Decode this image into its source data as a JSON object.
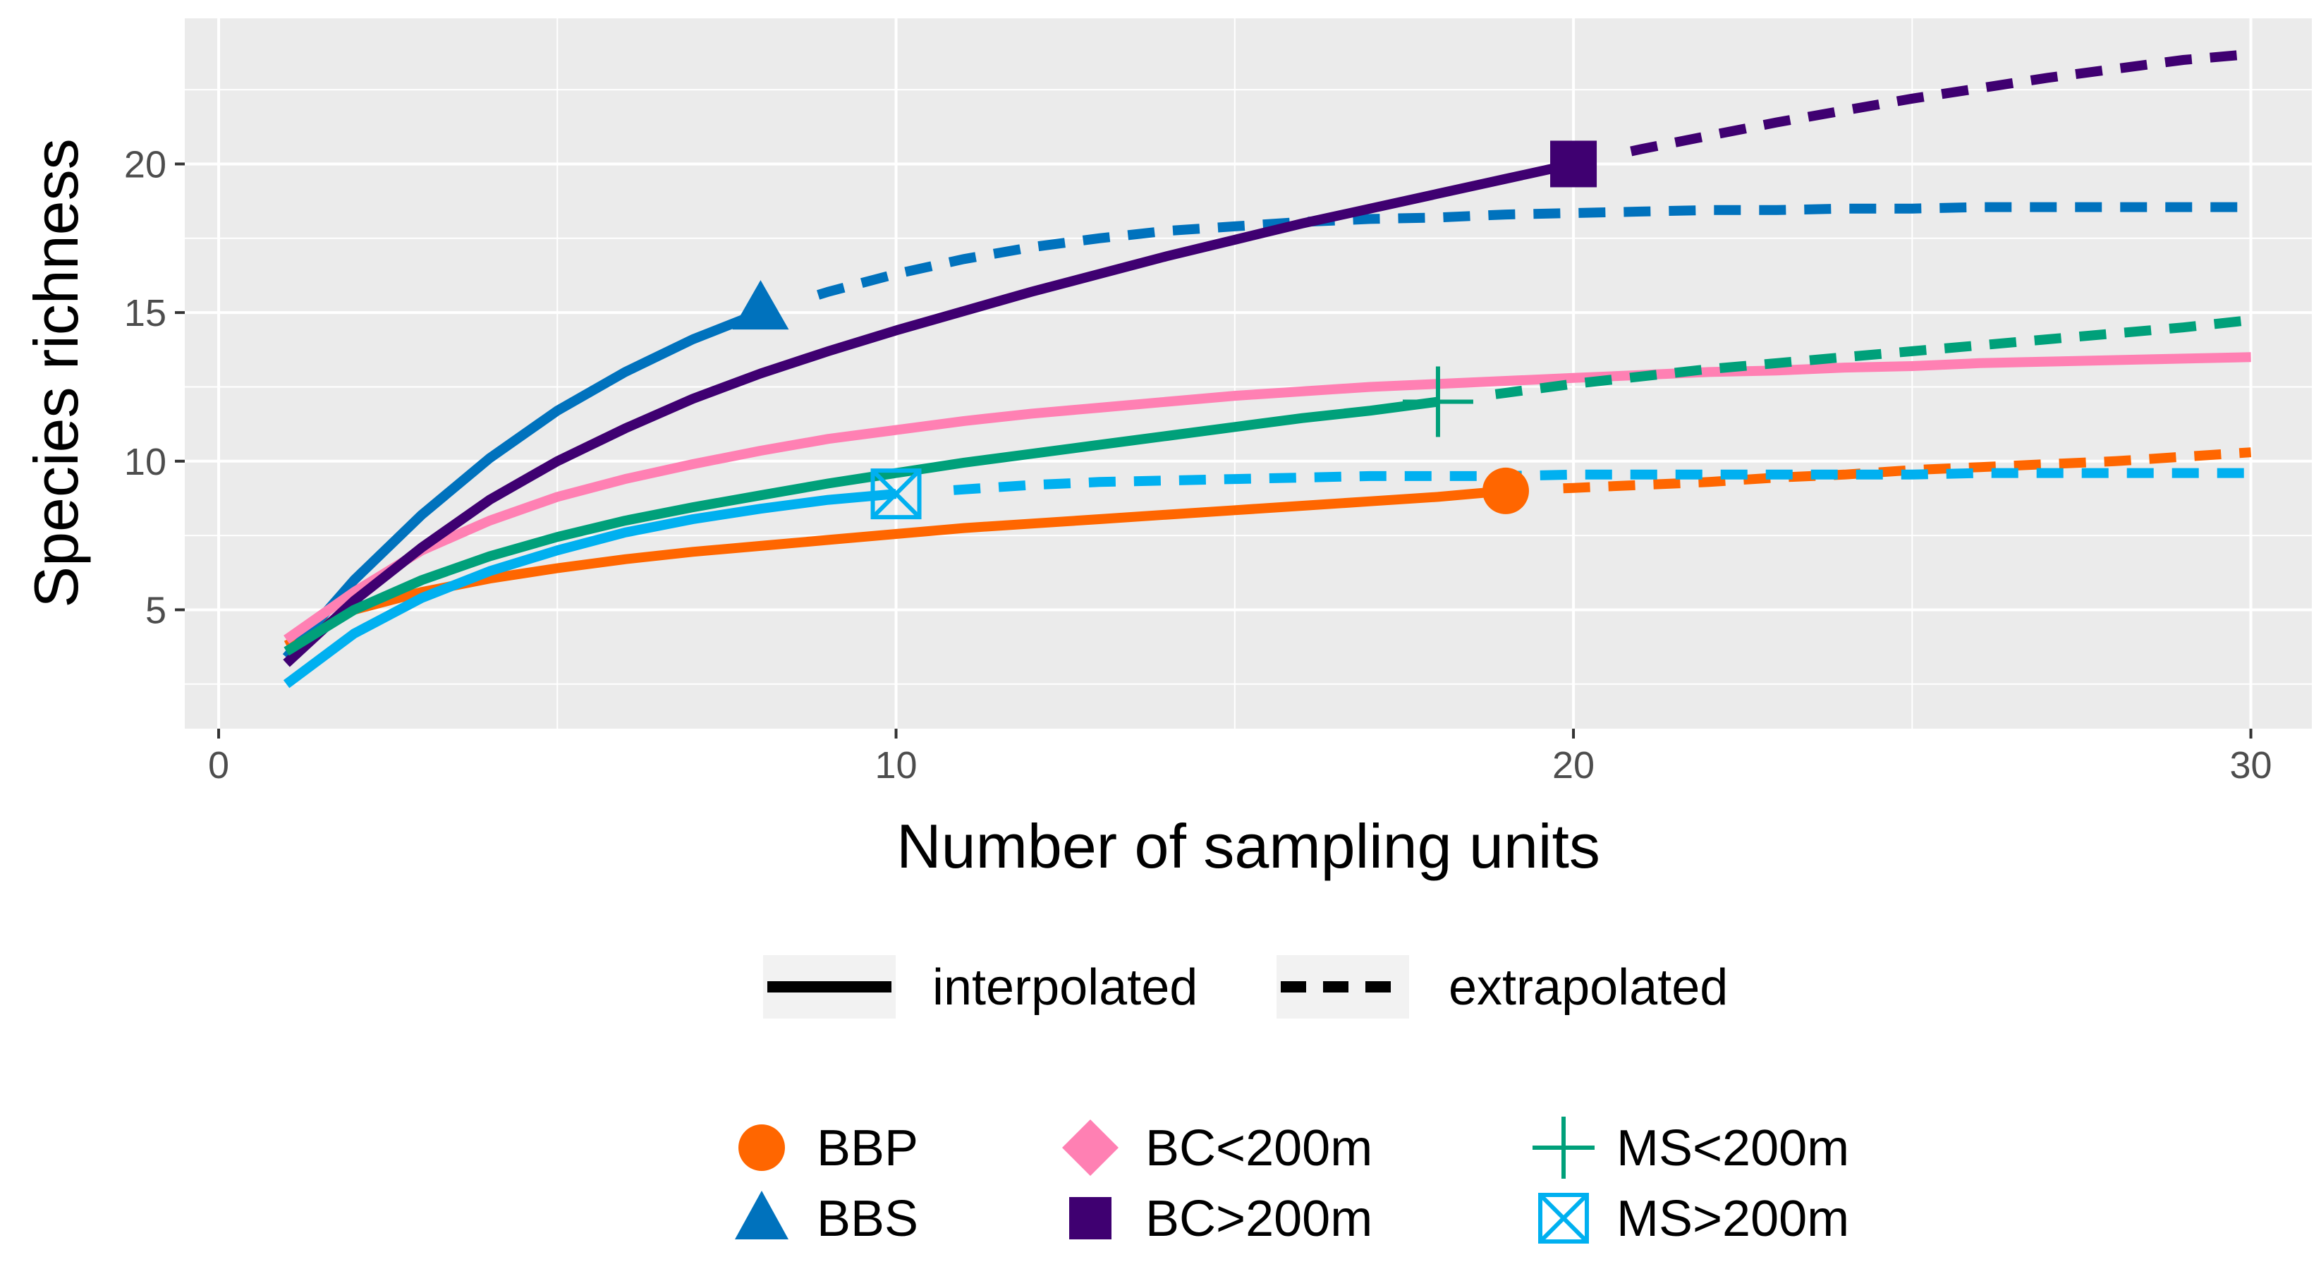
{
  "chart_data": {
    "type": "line",
    "title": "",
    "xlabel": "Number of sampling units",
    "ylabel": "Species richness",
    "xlim": [
      -0.5,
      30.9
    ],
    "ylim": [
      1.0,
      24.9
    ],
    "x_ticks": [
      0,
      10,
      20,
      30
    ],
    "y_ticks": [
      5,
      10,
      15,
      20
    ],
    "grid": true,
    "legend_position": "bottom",
    "linetype_legend": [
      {
        "label": "interpolated",
        "style": "solid"
      },
      {
        "label": "extrapolated",
        "style": "dashed"
      }
    ],
    "series": [
      {
        "name": "BBP",
        "color": "#FF6600",
        "marker": "circle",
        "observed": {
          "x": 19,
          "y": 9.0
        },
        "interpolated": {
          "x": [
            1,
            2,
            3,
            4,
            5,
            6,
            7,
            8,
            9,
            10,
            11,
            12,
            13,
            14,
            15,
            16,
            17,
            18,
            19
          ],
          "y": [
            3.8,
            5.0,
            5.6,
            6.05,
            6.4,
            6.7,
            6.95,
            7.15,
            7.35,
            7.55,
            7.75,
            7.9,
            8.05,
            8.2,
            8.35,
            8.5,
            8.65,
            8.8,
            9.0
          ]
        },
        "extrapolated": {
          "x": [
            20,
            21,
            22,
            23,
            24,
            25,
            26,
            27,
            28,
            29,
            30
          ],
          "y": [
            9.1,
            9.2,
            9.3,
            9.45,
            9.55,
            9.7,
            9.8,
            9.9,
            10.0,
            10.15,
            10.3
          ]
        }
      },
      {
        "name": "BBS",
        "color": "#0072BD",
        "marker": "triangle",
        "observed": {
          "x": 8,
          "y": 15.0
        },
        "interpolated": {
          "x": [
            1,
            2,
            3,
            4,
            5,
            6,
            7,
            8
          ],
          "y": [
            3.4,
            6.0,
            8.2,
            10.1,
            11.7,
            13.0,
            14.1,
            15.0
          ]
        },
        "extrapolated": {
          "x": [
            9,
            10,
            11,
            12,
            13,
            14,
            15,
            16,
            17,
            18,
            19,
            20,
            21,
            22,
            23,
            24,
            25,
            26,
            27,
            28,
            29,
            30
          ],
          "y": [
            15.7,
            16.3,
            16.8,
            17.2,
            17.5,
            17.75,
            17.9,
            18.05,
            18.15,
            18.2,
            18.3,
            18.35,
            18.4,
            18.45,
            18.45,
            18.5,
            18.5,
            18.55,
            18.55,
            18.55,
            18.55,
            18.55
          ]
        }
      },
      {
        "name": "BC<200m",
        "color": "#FF80B3",
        "marker": "diamond",
        "observed": null,
        "interpolated": {
          "x": [
            1,
            2,
            3,
            4,
            5,
            6,
            7,
            8,
            9,
            10,
            11,
            12,
            13,
            14,
            15,
            16,
            17,
            18,
            19,
            20,
            21,
            22,
            23,
            24,
            25,
            26,
            27,
            28,
            29,
            30
          ],
          "y": [
            4.0,
            5.6,
            7.0,
            8.0,
            8.8,
            9.4,
            9.9,
            10.35,
            10.75,
            11.05,
            11.35,
            11.6,
            11.8,
            12.0,
            12.2,
            12.35,
            12.5,
            12.6,
            12.7,
            12.8,
            12.9,
            13.0,
            13.05,
            13.15,
            13.2,
            13.3,
            13.35,
            13.4,
            13.45,
            13.5
          ]
        },
        "extrapolated": null
      },
      {
        "name": "BC>200m",
        "color": "#3F0071",
        "marker": "square",
        "observed": {
          "x": 20,
          "y": 20.0
        },
        "interpolated": {
          "x": [
            1,
            2,
            3,
            4,
            5,
            6,
            7,
            8,
            9,
            10,
            11,
            12,
            13,
            14,
            15,
            16,
            17,
            18,
            19,
            20
          ],
          "y": [
            3.2,
            5.3,
            7.1,
            8.7,
            10.0,
            11.1,
            12.1,
            12.95,
            13.7,
            14.4,
            15.05,
            15.7,
            16.3,
            16.9,
            17.45,
            18.0,
            18.5,
            19.0,
            19.5,
            20.0
          ]
        },
        "extrapolated": {
          "x": [
            21,
            22,
            23,
            24,
            25,
            26,
            27,
            28,
            29,
            30
          ],
          "y": [
            20.5,
            20.95,
            21.4,
            21.8,
            22.2,
            22.55,
            22.9,
            23.2,
            23.5,
            23.7
          ]
        }
      },
      {
        "name": "MS<200m",
        "color": "#00A07A",
        "marker": "plus",
        "observed": {
          "x": 18,
          "y": 12.0
        },
        "interpolated": {
          "x": [
            1,
            2,
            3,
            4,
            5,
            6,
            7,
            8,
            9,
            10,
            11,
            12,
            13,
            14,
            15,
            16,
            17,
            18
          ],
          "y": [
            3.6,
            5.0,
            6.0,
            6.8,
            7.45,
            8.0,
            8.45,
            8.85,
            9.25,
            9.6,
            9.95,
            10.25,
            10.55,
            10.85,
            11.15,
            11.45,
            11.7,
            12.0
          ]
        },
        "extrapolated": {
          "x": [
            19,
            20,
            21,
            22,
            23,
            24,
            25,
            26,
            27,
            28,
            29,
            30
          ],
          "y": [
            12.3,
            12.6,
            12.85,
            13.1,
            13.3,
            13.5,
            13.7,
            13.9,
            14.1,
            14.3,
            14.5,
            14.75
          ]
        }
      },
      {
        "name": "MS>200m",
        "color": "#00B0F0",
        "marker": "square-x",
        "observed": {
          "x": 10,
          "y": 8.9
        },
        "interpolated": {
          "x": [
            1,
            2,
            3,
            4,
            5,
            6,
            7,
            8,
            9,
            10
          ],
          "y": [
            2.5,
            4.2,
            5.4,
            6.3,
            7.0,
            7.6,
            8.05,
            8.4,
            8.7,
            8.9
          ]
        },
        "extrapolated": {
          "x": [
            11,
            12,
            13,
            14,
            15,
            16,
            17,
            18,
            19,
            20,
            21,
            22,
            23,
            24,
            25,
            26,
            27,
            28,
            29,
            30
          ],
          "y": [
            9.05,
            9.2,
            9.3,
            9.35,
            9.4,
            9.45,
            9.5,
            9.5,
            9.5,
            9.55,
            9.55,
            9.55,
            9.55,
            9.55,
            9.55,
            9.6,
            9.6,
            9.6,
            9.6,
            9.6
          ]
        }
      }
    ]
  }
}
